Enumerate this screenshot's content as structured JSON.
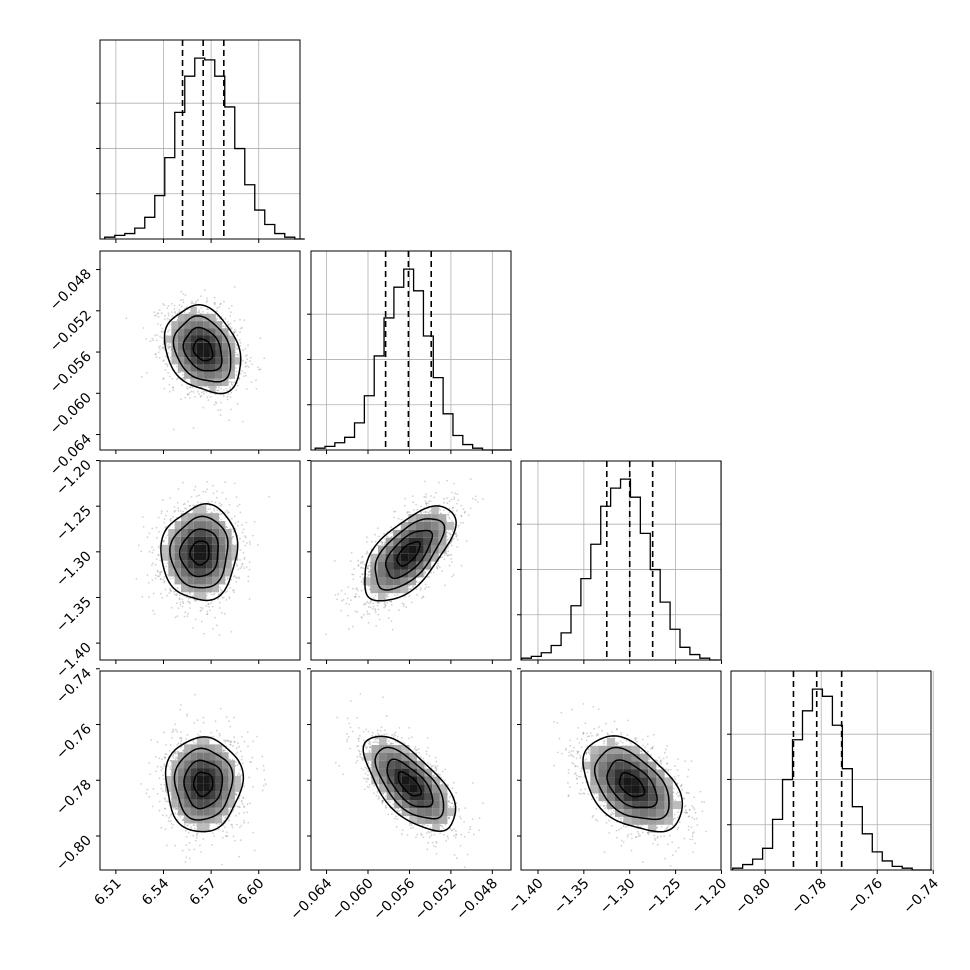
{
  "chart_data": {
    "type": "corner",
    "variables": [
      {
        "ticks": [
          6.51,
          6.54,
          6.57,
          6.6
        ],
        "tick_labels": [
          "6.51",
          "6.54",
          "6.57",
          "6.60"
        ],
        "range": [
          6.5,
          6.626
        ]
      },
      {
        "ticks": [
          -0.064,
          -0.06,
          -0.056,
          -0.052,
          -0.048
        ],
        "tick_labels": [
          "−0.064",
          "−0.060",
          "−0.056",
          "−0.052",
          "−0.048"
        ],
        "range": [
          -0.0655,
          -0.0462
        ]
      },
      {
        "ticks": [
          -1.4,
          -1.35,
          -1.3,
          -1.25,
          -1.2
        ],
        "tick_labels": [
          "−1.40",
          "−1.35",
          "−1.30",
          "−1.25",
          "−1.20"
        ],
        "range": [
          -1.4185,
          -1.2005
        ]
      },
      {
        "ticks": [
          -0.8,
          -0.78,
          -0.76,
          -0.74
        ],
        "tick_labels": [
          "−0.80",
          "−0.78",
          "−0.76",
          "−0.74"
        ],
        "range": [
          -0.8122,
          -0.7408
        ]
      }
    ],
    "marginals": [
      {
        "variable": 0,
        "bin_start": 6.503,
        "bin_width": 0.0063,
        "counts": [
          1,
          2,
          3,
          6,
          12,
          24,
          45,
          70,
          90,
          100,
          99,
          90,
          73,
          50,
          30,
          16,
          8,
          3,
          1,
          0
        ],
        "quantiles": [
          6.552,
          6.565,
          6.578
        ]
      },
      {
        "variable": 1,
        "bin_start": -0.0651,
        "bin_width": 0.00095,
        "counts": [
          1,
          2,
          4,
          7,
          15,
          30,
          52,
          73,
          90,
          100,
          88,
          63,
          40,
          20,
          8,
          3,
          1,
          0,
          0,
          0
        ],
        "quantiles": [
          -0.0583,
          -0.0561,
          -0.0539
        ]
      },
      {
        "variable": 2,
        "bin_start": -1.418,
        "bin_width": 0.0108,
        "counts": [
          1,
          2,
          4,
          8,
          15,
          30,
          45,
          64,
          85,
          95,
          100,
          90,
          70,
          50,
          32,
          17,
          7,
          3,
          1,
          0
        ],
        "quantiles": [
          -1.325,
          -1.3,
          -1.275
        ]
      },
      {
        "variable": 3,
        "bin_start": -0.8116,
        "bin_width": 0.00356,
        "counts": [
          1,
          3,
          6,
          12,
          28,
          50,
          72,
          88,
          100,
          96,
          80,
          56,
          35,
          20,
          10,
          5,
          2,
          1,
          0,
          0
        ],
        "quantiles": [
          -0.7899,
          -0.7816,
          -0.7727
        ]
      }
    ],
    "pairs": [
      {
        "x": 0,
        "y": 1,
        "mean": [
          6.565,
          -0.0558
        ],
        "sd": [
          0.012,
          0.0021
        ],
        "rho": -0.25
      },
      {
        "x": 0,
        "y": 2,
        "mean": [
          6.563,
          -1.301
        ],
        "sd": [
          0.012,
          0.026
        ],
        "rho": 0.05
      },
      {
        "x": 1,
        "y": 2,
        "mean": [
          -0.0561,
          -1.302
        ],
        "sd": [
          0.0022,
          0.026
        ],
        "rho": 0.62
      },
      {
        "x": 0,
        "y": 3,
        "mean": [
          6.565,
          -0.7813
        ],
        "sd": [
          0.012,
          0.0085
        ],
        "rho": 0.02
      },
      {
        "x": 1,
        "y": 3,
        "mean": [
          -0.056,
          -0.7815
        ],
        "sd": [
          0.0022,
          0.0085
        ],
        "rho": -0.65
      },
      {
        "x": 2,
        "y": 3,
        "mean": [
          -1.298,
          -0.7818
        ],
        "sd": [
          0.027,
          0.0085
        ],
        "rho": -0.45
      }
    ],
    "contour_levels": [
      0.5,
      1.0,
      1.5,
      2.0
    ],
    "quantile_line_style": "dashed",
    "grid": true,
    "colors": {
      "hist": "#000000",
      "quantile": "#000000",
      "contour": "#000000",
      "scatter": "#7f7f7f",
      "grid": "#b0b0b0",
      "axes": "#000000"
    }
  }
}
